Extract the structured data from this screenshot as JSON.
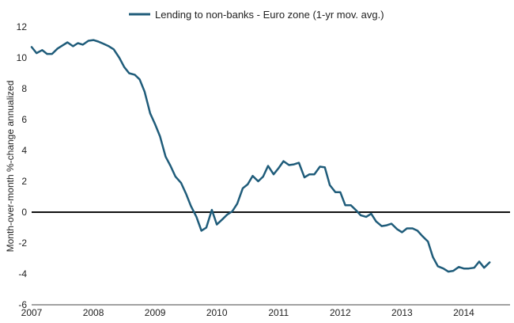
{
  "chart_data": {
    "type": "line",
    "title": "",
    "xlabel": "",
    "ylabel": "Month-over-month %-change annualized",
    "ylim": [
      -6,
      12
    ],
    "yticks": [
      "-6",
      "-4",
      "-2",
      "0",
      "2",
      "4",
      "6",
      "8",
      "10",
      "12"
    ],
    "xlim": [
      2007,
      2014.75
    ],
    "xticks": [
      "2007",
      "2008",
      "2009",
      "2010",
      "2011",
      "2012",
      "2013",
      "2014"
    ],
    "grid": false,
    "zero_line": true,
    "legend": "top-center",
    "series": [
      {
        "name": "Lending to non-banks - Euro zone (1-yr mov. avg.)",
        "color": "#1f5c7a",
        "points": [
          [
            2007.0,
            10.7
          ],
          [
            2007.08,
            10.3
          ],
          [
            2007.17,
            10.5
          ],
          [
            2007.25,
            10.25
          ],
          [
            2007.33,
            10.25
          ],
          [
            2007.42,
            10.6
          ],
          [
            2007.5,
            10.8
          ],
          [
            2007.58,
            11.0
          ],
          [
            2007.67,
            10.75
          ],
          [
            2007.75,
            10.95
          ],
          [
            2007.83,
            10.85
          ],
          [
            2007.92,
            11.1
          ],
          [
            2008.0,
            11.15
          ],
          [
            2008.08,
            11.05
          ],
          [
            2008.17,
            10.9
          ],
          [
            2008.25,
            10.75
          ],
          [
            2008.33,
            10.55
          ],
          [
            2008.42,
            10.0
          ],
          [
            2008.5,
            9.4
          ],
          [
            2008.58,
            9.0
          ],
          [
            2008.67,
            8.9
          ],
          [
            2008.75,
            8.6
          ],
          [
            2008.83,
            7.8
          ],
          [
            2008.92,
            6.4
          ],
          [
            2009.0,
            5.7
          ],
          [
            2009.08,
            4.9
          ],
          [
            2009.17,
            3.6
          ],
          [
            2009.25,
            3.0
          ],
          [
            2009.33,
            2.3
          ],
          [
            2009.42,
            1.9
          ],
          [
            2009.5,
            1.2
          ],
          [
            2009.58,
            0.4
          ],
          [
            2009.67,
            -0.3
          ],
          [
            2009.75,
            -1.2
          ],
          [
            2009.83,
            -1.0
          ],
          [
            2009.92,
            0.15
          ],
          [
            2010.0,
            -0.8
          ],
          [
            2010.08,
            -0.5
          ],
          [
            2010.17,
            -0.15
          ],
          [
            2010.25,
            0.05
          ],
          [
            2010.33,
            0.55
          ],
          [
            2010.42,
            1.55
          ],
          [
            2010.5,
            1.8
          ],
          [
            2010.58,
            2.35
          ],
          [
            2010.67,
            2.0
          ],
          [
            2010.75,
            2.3
          ],
          [
            2010.83,
            3.0
          ],
          [
            2010.92,
            2.45
          ],
          [
            2011.0,
            2.85
          ],
          [
            2011.08,
            3.3
          ],
          [
            2011.17,
            3.05
          ],
          [
            2011.25,
            3.1
          ],
          [
            2011.33,
            3.2
          ],
          [
            2011.42,
            2.25
          ],
          [
            2011.5,
            2.45
          ],
          [
            2011.58,
            2.45
          ],
          [
            2011.67,
            2.95
          ],
          [
            2011.75,
            2.9
          ],
          [
            2011.83,
            1.75
          ],
          [
            2011.92,
            1.3
          ],
          [
            2012.0,
            1.3
          ],
          [
            2012.08,
            0.45
          ],
          [
            2012.17,
            0.45
          ],
          [
            2012.25,
            0.15
          ],
          [
            2012.33,
            -0.2
          ],
          [
            2012.42,
            -0.3
          ],
          [
            2012.5,
            -0.1
          ],
          [
            2012.58,
            -0.6
          ],
          [
            2012.67,
            -0.9
          ],
          [
            2012.75,
            -0.85
          ],
          [
            2012.83,
            -0.75
          ],
          [
            2012.92,
            -1.1
          ],
          [
            2013.0,
            -1.3
          ],
          [
            2013.08,
            -1.05
          ],
          [
            2013.17,
            -1.05
          ],
          [
            2013.25,
            -1.2
          ],
          [
            2013.33,
            -1.55
          ],
          [
            2013.42,
            -1.9
          ],
          [
            2013.5,
            -2.9
          ],
          [
            2013.58,
            -3.5
          ],
          [
            2013.67,
            -3.65
          ],
          [
            2013.75,
            -3.85
          ],
          [
            2013.83,
            -3.8
          ],
          [
            2013.92,
            -3.55
          ],
          [
            2014.0,
            -3.65
          ],
          [
            2014.08,
            -3.65
          ],
          [
            2014.17,
            -3.6
          ],
          [
            2014.25,
            -3.2
          ],
          [
            2014.33,
            -3.6
          ],
          [
            2014.42,
            -3.25
          ]
        ]
      }
    ]
  }
}
